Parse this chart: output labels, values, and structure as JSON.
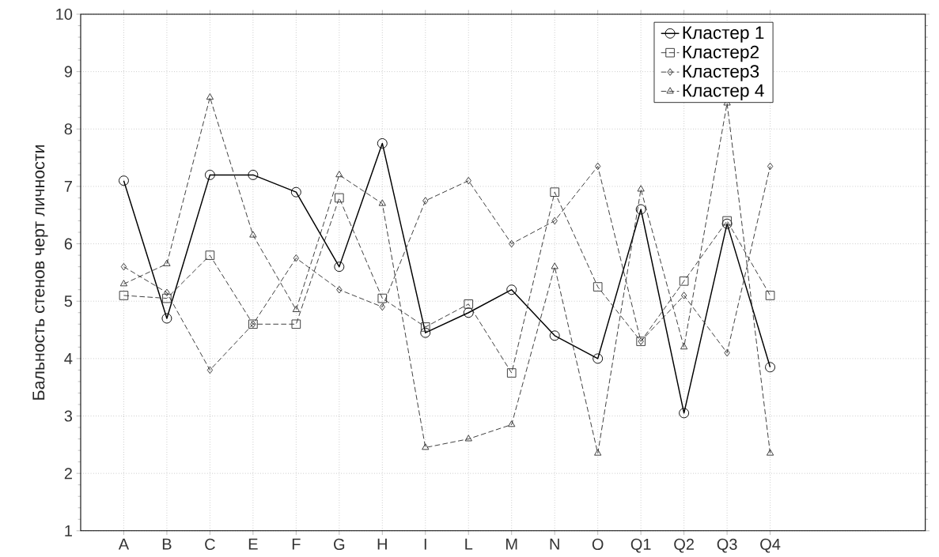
{
  "chart_data": {
    "type": "line",
    "ylabel": "Бальность стенов черт личности",
    "categories": [
      "A",
      "B",
      "C",
      "E",
      "F",
      "G",
      "H",
      "I",
      "L",
      "M",
      "N",
      "O",
      "Q1",
      "Q2",
      "Q3",
      "Q4"
    ],
    "ylim": [
      1,
      10
    ],
    "yticks": [
      1,
      2,
      3,
      4,
      5,
      6,
      7,
      8,
      9,
      10
    ],
    "grid": true,
    "legend": "top right",
    "series": [
      {
        "name": "Кластер 1",
        "color": "#000000",
        "marker": "circle",
        "line_style": "solid",
        "values": [
          7.1,
          4.7,
          7.2,
          7.2,
          6.9,
          5.6,
          7.75,
          4.45,
          4.8,
          5.2,
          4.4,
          4.0,
          6.6,
          3.05,
          6.35,
          3.85
        ]
      },
      {
        "name": "Кластер2",
        "color": "#333333",
        "marker": "square",
        "line_style": "dashed",
        "values": [
          5.1,
          5.05,
          5.8,
          4.6,
          4.6,
          6.8,
          5.05,
          4.55,
          4.95,
          3.75,
          6.9,
          5.25,
          4.3,
          5.35,
          6.4,
          5.1
        ]
      },
      {
        "name": "Кластер3",
        "color": "#333333",
        "marker": "diamond",
        "line_style": "dashed",
        "values": [
          5.6,
          5.15,
          3.8,
          4.6,
          5.75,
          5.2,
          4.9,
          6.75,
          7.1,
          6.0,
          6.4,
          7.35,
          4.3,
          5.1,
          4.1,
          7.35
        ]
      },
      {
        "name": "Кластер 4",
        "color": "#333333",
        "marker": "triangle",
        "line_style": "dashed",
        "values": [
          5.3,
          5.65,
          8.55,
          6.15,
          4.85,
          7.2,
          6.7,
          2.45,
          2.6,
          2.85,
          5.6,
          2.35,
          6.95,
          4.2,
          8.45,
          2.35
        ]
      }
    ]
  }
}
